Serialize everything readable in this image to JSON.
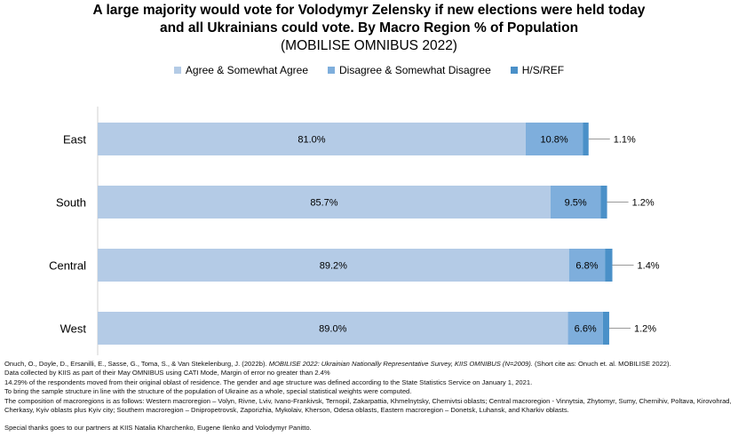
{
  "chart_data": {
    "type": "bar",
    "orientation": "horizontal-stacked",
    "title": "A large majority would vote for Volodymyr Zelensky if new elections were held today and all Ukrainians could vote.  By Macro Region % of Population",
    "subtitle": "(MOBILISE OMNIBUS 2022)",
    "categories": [
      "East",
      "South",
      "Central",
      "West"
    ],
    "series": [
      {
        "name": "Agree & Somewhat Agree",
        "color": "#b4cbe6",
        "values": [
          81.0,
          85.7,
          89.2,
          89.0
        ],
        "labels": [
          "81.0%",
          "85.7%",
          "89.2%",
          "89.0%"
        ]
      },
      {
        "name": "Disagree & Somewhat Disagree",
        "color": "#7eaedc",
        "values": [
          10.8,
          9.5,
          6.8,
          6.6
        ],
        "labels": [
          "10.8%",
          "9.5%",
          "6.8%",
          "6.6%"
        ]
      },
      {
        "name": "H/S/REF",
        "color": "#4a90c8",
        "values": [
          1.1,
          1.2,
          1.4,
          1.2
        ],
        "labels": [
          "1.1%",
          "1.2%",
          "1.4%",
          "1.2%"
        ]
      }
    ],
    "xlim": [
      0,
      100
    ],
    "legend": "top"
  },
  "notes": [
    "Onuch, O., Doyle, D., Ersanilli, E., Sasse, G., Toma, S., & Van Stekelenburg, J. (2022b). ",
    "MOBILISE 2022: Ukrainian Nationally Representative Survey, KIIS OMNIBUS  (N=2009).",
    "  (Short cite as: Onuch et. al. MOBILISE 2022).",
    "Data collected by KIIS as part of their May OMNIBUS using CATI Mode, Margin of error no greater than 2.4%",
    "14.29% of the respondents moved from their original oblast of residence. The gender and age structure was defined according to the State Statistics Service on January 1, 2021.",
    "To bring the sample structure in line with the structure of the population of Ukraine as a whole, special statistical weights were computed.",
    "The composition of macroregions is as follows: Western macroregion – Volyn, Rivne, Lviv, Ivano-Frankivsk, Ternopil, Zakarpattia, Khmelnytsky, Chernivtsi oblasts; Central macroregion - Vinnytsia, Zhytomyr, Sumy, Chernihiv, Poltava, Kirovohrad,",
    "Cherkasy, Kyiv oblasts plus Kyiv city; Southern macroregion – Dnipropetrovsk, Zaporizhia, Mykolaiv, Kherson, Odesa oblasts, Eastern macroregion – Donetsk, Luhansk, and Kharkiv oblasts.",
    "Special thanks goes to our partners at KIIS Natalia Kharchenko, Eugene Ilenko and Volodymyr Panitto."
  ]
}
